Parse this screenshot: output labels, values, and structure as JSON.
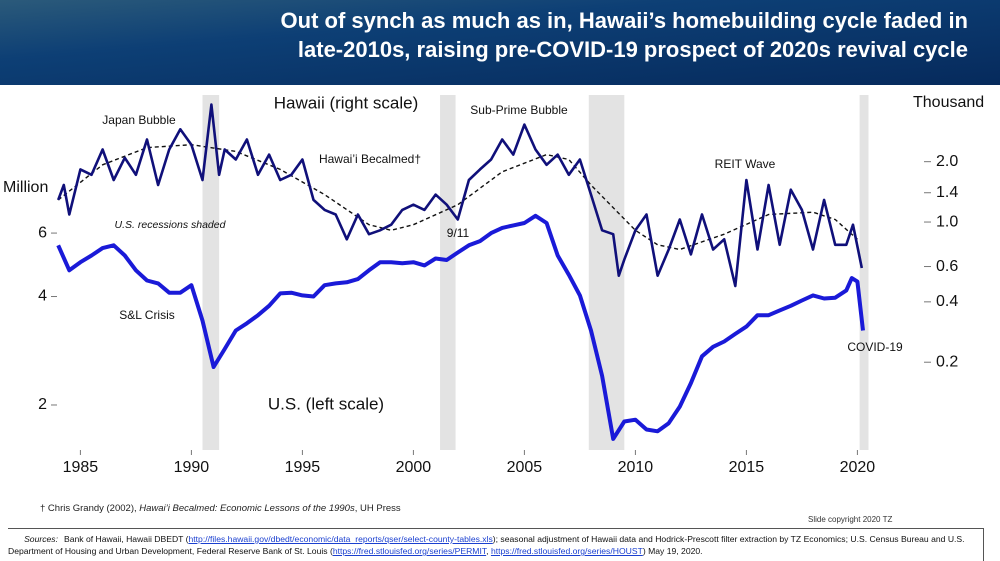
{
  "chart_data": {
    "type": "line",
    "title": [
      "Out of synch as much as in, Hawaii’s homebuilding cycle faded in",
      "late-2010s, raising pre-COVID-19 prospect of 2020s revival cycle"
    ],
    "y_label": "Million",
    "y2_label": "Thousand",
    "log_scale": true,
    "xlim": [
      1983,
      2023
    ],
    "xticks": [
      1985,
      1990,
      1995,
      2000,
      2005,
      2010,
      2015,
      2020
    ],
    "ylim": [
      1.5,
      14.5
    ],
    "yticks": [
      2,
      4,
      6
    ],
    "y2lim": [
      0.073,
      4.3
    ],
    "y2ticks": [
      {
        "value": 2,
        "label": "2.0"
      },
      1.4,
      {
        "value": 1,
        "label": "1.0"
      },
      0.6,
      0.4,
      0.2
    ],
    "recessions": [
      [
        1990.5,
        1991.25
      ],
      [
        2001.2,
        2001.9
      ],
      [
        2007.9,
        2009.5
      ],
      [
        2020.1,
        2020.5
      ]
    ],
    "recession_color": "#e3e3e3",
    "series": [
      {
        "color": "#1a1ad8",
        "axis": "y",
        "x": [
          1984,
          1984.5,
          1985,
          1985.5,
          1986,
          1986.5,
          1987,
          1987.5,
          1988,
          1988.5,
          1989,
          1989.5,
          1990,
          1990.5,
          1991,
          1991.5,
          1992,
          1992.5,
          1993,
          1993.5,
          1994,
          1994.5,
          1995,
          1995.5,
          1996,
          1996.5,
          1997,
          1997.5,
          1998,
          1998.5,
          1999,
          1999.5,
          2000,
          2000.5,
          2001,
          2001.5,
          2002,
          2002.5,
          2003,
          2003.5,
          2004,
          2004.5,
          2005,
          2005.5,
          2006,
          2006.5,
          2007,
          2007.5,
          2008,
          2008.5,
          2009,
          2009.5,
          2010,
          2010.5,
          2011,
          2011.5,
          2012,
          2012.5,
          2013,
          2013.5,
          2014,
          2014.5,
          2015,
          2015.5,
          2016,
          2016.5,
          2017,
          2017.5,
          2018,
          2018.5,
          2019,
          2019.5,
          2019.75,
          2020,
          2020.25
        ],
        "values": [
          5.55,
          4.73,
          4.98,
          5.2,
          5.45,
          5.55,
          5.2,
          4.73,
          4.43,
          4.35,
          4.1,
          4.1,
          4.3,
          3.43,
          2.55,
          2.86,
          3.22,
          3.37,
          3.55,
          3.77,
          4.08,
          4.1,
          4.03,
          4.0,
          4.3,
          4.35,
          4.38,
          4.47,
          4.73,
          4.98,
          4.98,
          4.95,
          4.98,
          4.88,
          5.1,
          5.05,
          5.3,
          5.55,
          5.7,
          6.0,
          6.2,
          6.3,
          6.4,
          6.7,
          6.4,
          5.2,
          4.6,
          4.03,
          3.22,
          2.41,
          1.61,
          1.8,
          1.82,
          1.71,
          1.69,
          1.78,
          1.98,
          2.3,
          2.73,
          2.9,
          3.0,
          3.15,
          3.3,
          3.55,
          3.55,
          3.66,
          3.77,
          3.9,
          4.03,
          3.95,
          3.97,
          4.16,
          4.5,
          4.4,
          3.22
        ]
      },
      {
        "color": "#10107a",
        "axis": "y2",
        "x": [
          1984,
          1984.25,
          1984.5,
          1985,
          1985.5,
          1986,
          1986.5,
          1987,
          1987.5,
          1988,
          1988.5,
          1989,
          1989.5,
          1990,
          1990.5,
          1990.9,
          1991.25,
          1991.5,
          1992,
          1992.5,
          1993,
          1993.5,
          1994,
          1994.5,
          1995,
          1995.5,
          1996,
          1996.5,
          1997,
          1997.5,
          1998,
          1998.5,
          1999,
          1999.5,
          2000,
          2000.5,
          2001,
          2001.5,
          2002,
          2002.5,
          2003,
          2003.5,
          2004,
          2004.5,
          2005,
          2005.5,
          2006,
          2006.5,
          2007,
          2007.5,
          2008,
          2008.5,
          2009,
          2009.25,
          2009.5,
          2010,
          2010.5,
          2011,
          2011.5,
          2012,
          2012.5,
          2013,
          2013.5,
          2014,
          2014.5,
          2015,
          2015.5,
          2016,
          2016.5,
          2017,
          2017.5,
          2018,
          2018.5,
          2019,
          2019.5,
          2019.8,
          2020.2
        ],
        "values": [
          1.29,
          1.53,
          1.09,
          1.83,
          1.72,
          2.3,
          1.62,
          2.09,
          1.72,
          2.58,
          1.53,
          2.3,
          2.9,
          2.43,
          1.62,
          3.85,
          1.72,
          2.3,
          2.05,
          2.58,
          1.72,
          2.17,
          1.62,
          1.72,
          2.05,
          1.29,
          1.15,
          1.09,
          0.82,
          1.09,
          0.87,
          0.91,
          0.97,
          1.15,
          1.22,
          1.15,
          1.37,
          1.22,
          1.03,
          1.62,
          1.83,
          2.05,
          2.58,
          2.17,
          3.06,
          2.3,
          1.93,
          2.17,
          1.72,
          2.05,
          1.37,
          0.91,
          0.87,
          0.54,
          0.65,
          0.91,
          1.09,
          0.54,
          0.73,
          1.03,
          0.69,
          1.09,
          0.73,
          0.82,
          0.48,
          1.62,
          0.73,
          1.53,
          0.77,
          1.45,
          1.15,
          0.73,
          1.29,
          0.77,
          0.77,
          0.97,
          0.59
        ]
      },
      {
        "color": "#111111",
        "axis": "y2",
        "dashed": true,
        "x": [
          1984,
          1986,
          1988,
          1990,
          1992,
          1994,
          1996,
          1998,
          1999,
          2000,
          2002,
          2004,
          2006,
          2007,
          2008,
          2010,
          2011,
          2012,
          2014,
          2016,
          2018,
          2019,
          2020
        ],
        "values": [
          1.29,
          1.93,
          2.35,
          2.43,
          2.25,
          1.83,
          1.37,
          0.97,
          0.91,
          0.97,
          1.22,
          1.78,
          2.17,
          2.05,
          1.53,
          0.91,
          0.77,
          0.73,
          0.87,
          1.09,
          1.12,
          1.03,
          0.82
        ]
      }
    ],
    "annotations": [
      "Japan Bubble",
      "Hawaii (right scale)",
      "Sub-Prime Bubble",
      "Hawai’i Becalmed†",
      "REIT Wave",
      "U.S. recessions shaded",
      "9/11",
      "S&L Crisis",
      "COVID-19",
      "U.S. (left scale)"
    ]
  },
  "footnote": [
    {
      "text": "† Chris Grandy (2002), "
    },
    {
      "italic": "Hawai’i Becalmed: Economic Lessons of the 1990s"
    },
    {
      "text": ", UH Press"
    }
  ],
  "copyright": "Slide copyright 2020 TZ",
  "sources": {
    "label": "Sources:",
    "parts": [
      {
        "text": "Bank of Hawaii, Hawaii DBEDT ("
      },
      {
        "link": "http://files.hawaii.gov/dbedt/economic/data_reports/qser/select-county-tables.xls"
      },
      {
        "text": "); seasonal adjustment of Hawaii data and Hodrick-Prescott filter extraction by TZ Economics; U.S. Census Bureau and U.S. Department of Housing and Urban Development, Federal Reserve Bank of St. Louis ("
      },
      {
        "link": "https://fred.stlouisfed.org/series/PERMIT"
      },
      {
        "text": ", "
      },
      {
        "link": "https://fred.stlouisfed.org/series/HOUST"
      },
      {
        "text": ") May 19, 2020."
      }
    ]
  }
}
